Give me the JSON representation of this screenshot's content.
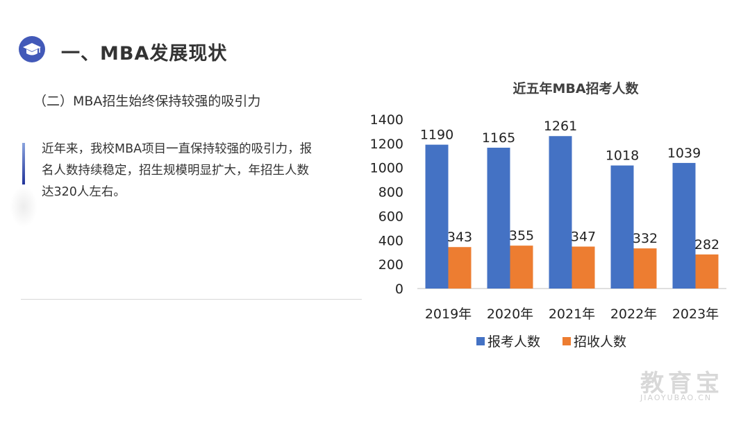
{
  "header": {
    "title": "一、MBA发展现状",
    "subtitle": "（二）MBA招生始终保持较强的吸引力"
  },
  "body": {
    "paragraph_lines": [
      "近年来，我校MBA项目一直保持较强的吸引力，报",
      "名人数持续稳定，招生规模明显扩大，年招生人数",
      "达320人左右。"
    ]
  },
  "watermark": {
    "main": "教育宝",
    "sub": "JIAOYUBAO.CN"
  },
  "colors": {
    "accent": "#4472c4",
    "secondary": "#ed7d31",
    "logo": "#4259b8"
  },
  "chart_data": {
    "type": "bar",
    "title": "近五年MBA招考人数",
    "categories": [
      "2019年",
      "2020年",
      "2021年",
      "2022年",
      "2023年"
    ],
    "series": [
      {
        "name": "报考人数",
        "values": [
          1190,
          1165,
          1261,
          1018,
          1039
        ],
        "color": "#4472c4"
      },
      {
        "name": "招收人数",
        "values": [
          343,
          355,
          347,
          332,
          282
        ],
        "color": "#ed7d31"
      }
    ],
    "ylim": [
      0,
      1400
    ],
    "yticks": [
      0,
      200,
      400,
      600,
      800,
      1000,
      1200,
      1400
    ],
    "grid": false,
    "legend": "bottom"
  }
}
